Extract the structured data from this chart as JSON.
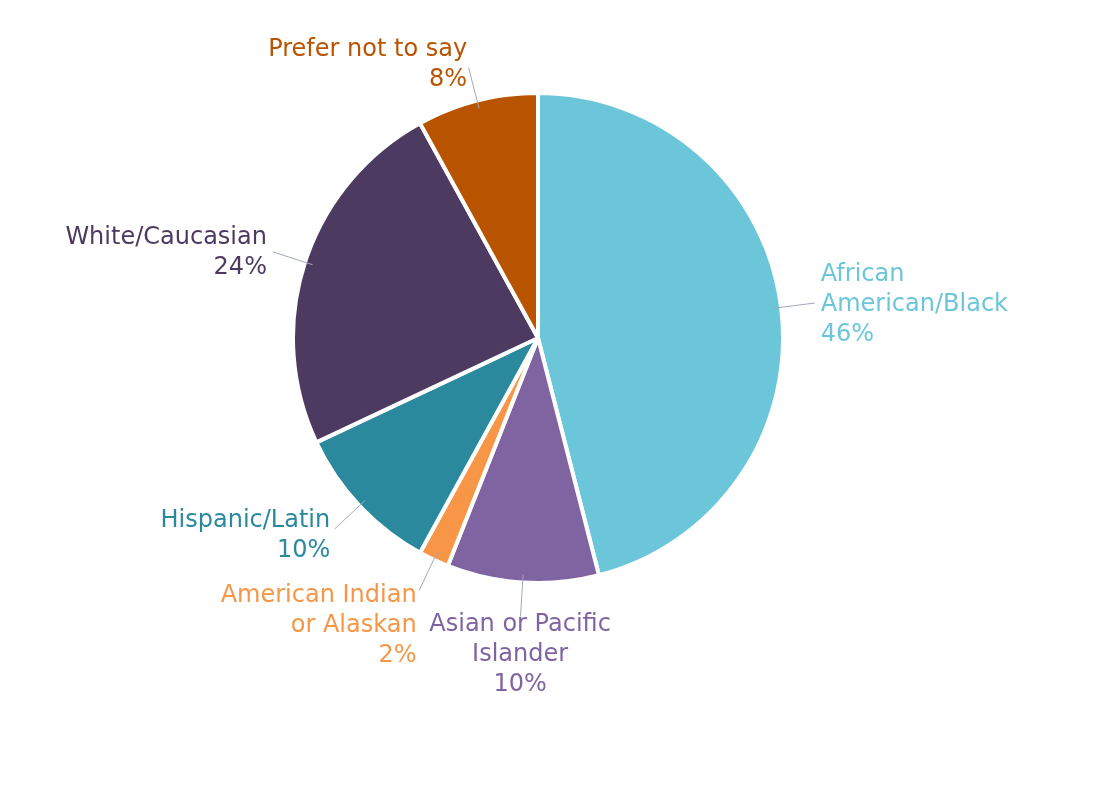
{
  "chart_data": {
    "type": "pie",
    "categories": [
      "African American/Black",
      "Asian or Pacific Islander",
      "American Indian or Alaskan",
      "Hispanic/Latin",
      "White/Caucasian",
      "Prefer not to say"
    ],
    "values": [
      46,
      10,
      2,
      10,
      24,
      8
    ],
    "colors": [
      "#6cc6da",
      "#8064a2",
      "#f79646",
      "#2a899c",
      "#4d3a60",
      "#b85400"
    ],
    "value_labels": [
      "46%",
      "10%",
      "2%",
      "10%",
      "24%",
      "8%"
    ]
  }
}
